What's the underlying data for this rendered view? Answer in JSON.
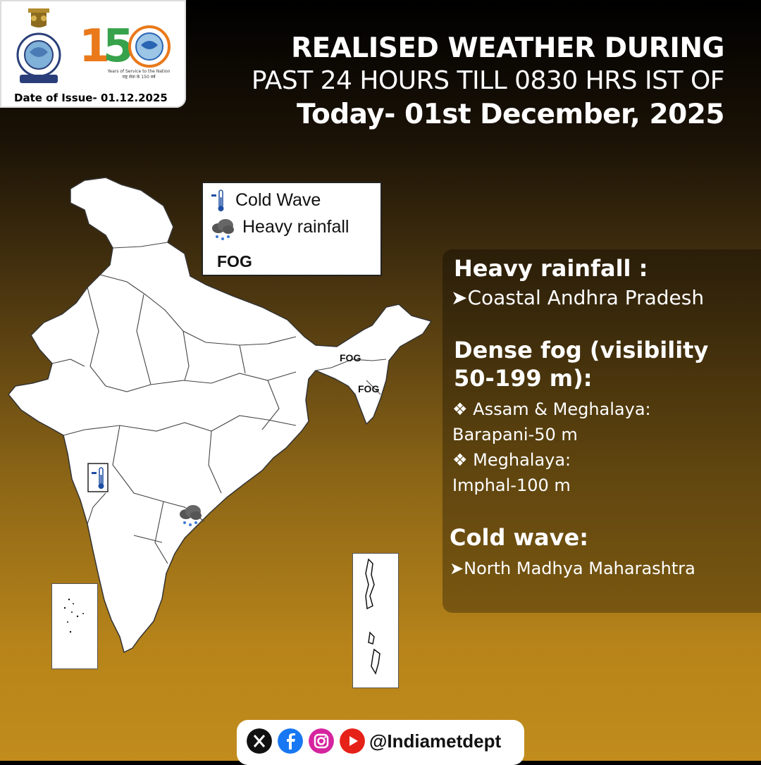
{
  "header": {
    "issue_label": "Date  of Issue- 01.12.2025",
    "logo_150_tagline": "Years of Service to the Nation",
    "logo_150_hindi": "राष्ट्र सेवा के 150 वर्ष",
    "title_line1": "REALISED WEATHER DURING",
    "title_line2": "PAST 24 HOURS TILL 0830 HRS IST OF",
    "title_line3": "Today- 01st December, 2025"
  },
  "legend": {
    "items": [
      {
        "label": "Cold Wave",
        "icon": "thermometer-icon"
      },
      {
        "label": "Heavy rainfall",
        "icon": "rain-cloud-icon"
      }
    ],
    "fog_label": "FOG"
  },
  "map_markers": {
    "fog_1": "FOG",
    "fog_2": "FOG"
  },
  "info": {
    "heavy_rainfall_heading": "Heavy rainfall :",
    "heavy_rainfall_item": "➤Coastal Andhra Pradesh",
    "dense_fog_heading_1": "Dense fog (visibility",
    "dense_fog_heading_2": "50-199 m):",
    "fog_state_1": "❖ Assam & Meghalaya:",
    "fog_place_1": "Barapani-50 m",
    "fog_state_2": "❖ Meghalaya:",
    "fog_place_2": "Imphal-100 m",
    "cold_wave_heading": "Cold wave:",
    "cold_wave_item": "➤North Madhya Maharashtra"
  },
  "footer": {
    "handle": "@Indiametdept",
    "icons": [
      "x-icon",
      "facebook-icon",
      "instagram-icon",
      "youtube-icon"
    ]
  },
  "colors": {
    "orange": "#e9791a",
    "green": "#37a24b",
    "blue": "#2a65b3",
    "facebook": "#1877f2",
    "youtube": "#e62117",
    "instagram": "#d6249f"
  }
}
